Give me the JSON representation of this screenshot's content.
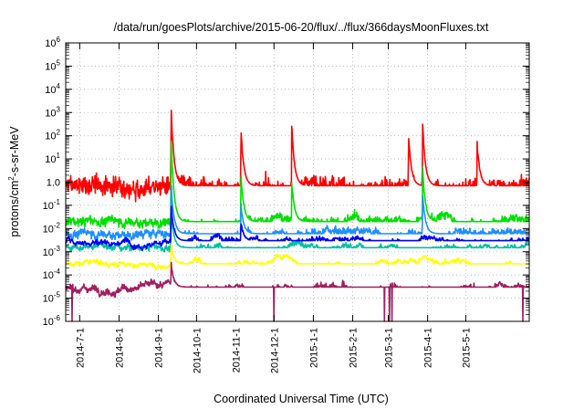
{
  "chart_data": {
    "type": "line",
    "title": "/data/run/goesPlots/archive/2015-06-20/flux/../flux/366daysMoonFluxes.txt",
    "xlabel": "Coordinated Universal Time (UTC)",
    "ylabel": "protons/cm²-s-sr-MeV",
    "ylabel_parts": {
      "before": "protons/cm",
      "sup": "2",
      "after": "-s-sr-MeV"
    },
    "yscale": "log",
    "ylim": [
      1e-06,
      1000000.0
    ],
    "xlim": [
      "2014-06-20",
      "2015-06-20"
    ],
    "ytick_labels": [
      {
        "base": "10",
        "exp": "-6",
        "value": 1e-06
      },
      {
        "base": "10",
        "exp": "-5",
        "value": 1e-05
      },
      {
        "base": "10",
        "exp": "-4",
        "value": 0.0001
      },
      {
        "base": "10",
        "exp": "-3",
        "value": 0.001
      },
      {
        "base": "10",
        "exp": "-2",
        "value": 0.01
      },
      {
        "base": "10",
        "exp": "-1",
        "value": 0.1
      },
      {
        "base": "",
        "exp": "",
        "text": "1.0",
        "value": 1
      },
      {
        "base": "10",
        "exp": "1",
        "value": 10.0
      },
      {
        "base": "10",
        "exp": "2",
        "value": 100.0
      },
      {
        "base": "10",
        "exp": "3",
        "value": 1000.0
      },
      {
        "base": "10",
        "exp": "4",
        "value": 10000.0
      },
      {
        "base": "10",
        "exp": "5",
        "value": 100000.0
      },
      {
        "base": "10",
        "exp": "6",
        "value": 1000000.0
      }
    ],
    "xtick_labels": [
      {
        "text": "2014-7-1",
        "date": "2014-07-01"
      },
      {
        "text": "2014-8-1",
        "date": "2014-08-01"
      },
      {
        "text": "2014-9-1",
        "date": "2014-09-01"
      },
      {
        "text": "2014-10-1",
        "date": "2014-10-01"
      },
      {
        "text": "2014-11-1",
        "date": "2014-11-01"
      },
      {
        "text": "2014-12-1",
        "date": "2014-12-01"
      },
      {
        "text": "2015-1-1",
        "date": "2015-01-01"
      },
      {
        "text": "2015-2-1",
        "date": "2015-02-01"
      },
      {
        "text": "2015-3-1",
        "date": "2015-03-01"
      },
      {
        "text": "2015-4-1",
        "date": "2015-04-01"
      },
      {
        "text": "2015-5-1",
        "date": "2015-05-01"
      }
    ],
    "grid": true,
    "series": [
      {
        "color": "#ff0000",
        "baseline": 0.7,
        "noise_decades": 0.75,
        "events": [
          {
            "date": "2014-09-11",
            "peak": 2000
          },
          {
            "date": "2014-11-05",
            "peak": 200
          },
          {
            "date": "2014-12-15",
            "peak": 300
          },
          {
            "date": "2015-03-17",
            "peak": 100
          },
          {
            "date": "2015-03-28",
            "peak": 400
          },
          {
            "date": "2015-05-10",
            "peak": 50
          }
        ]
      },
      {
        "color": "#00e000",
        "baseline": 0.02,
        "noise_decades": 0.35,
        "events": [
          {
            "date": "2014-09-11",
            "peak": 80
          },
          {
            "date": "2014-11-05",
            "peak": 2
          },
          {
            "date": "2014-12-15",
            "peak": 1
          },
          {
            "date": "2015-03-28",
            "peak": 5
          }
        ]
      },
      {
        "color": "#1e90ff",
        "baseline": 0.006,
        "noise_decades": 0.3,
        "events": [
          {
            "date": "2014-09-11",
            "peak": 0.8
          },
          {
            "date": "2014-11-05",
            "peak": 0.1
          },
          {
            "date": "2015-03-28",
            "peak": 0.3
          }
        ]
      },
      {
        "color": "#00c0a0",
        "baseline": 0.0015,
        "noise_decades": 0.2,
        "events": [
          {
            "date": "2014-09-11",
            "peak": 0.05
          }
        ]
      },
      {
        "color": "#0000ff",
        "baseline": 0.003,
        "noise_decades": 0.18,
        "events": [
          {
            "date": "2014-09-11",
            "peak": 0.1
          },
          {
            "date": "2014-11-05",
            "peak": 0.02
          }
        ]
      },
      {
        "color": "#ffff00",
        "baseline": 0.0003,
        "noise_decades": 0.12,
        "events": [
          {
            "date": "2014-09-11",
            "peak": 0.002
          }
        ]
      },
      {
        "color": "#a02060",
        "baseline": 3e-05,
        "noise_decades": 0.25,
        "dropouts": [
          "2014-06-25",
          "2014-12-01",
          "2015-02-26",
          "2015-03-02",
          "2015-03-04",
          "2015-06-15"
        ],
        "events": [
          {
            "date": "2014-09-11",
            "peak": 0.0003
          }
        ]
      }
    ]
  }
}
